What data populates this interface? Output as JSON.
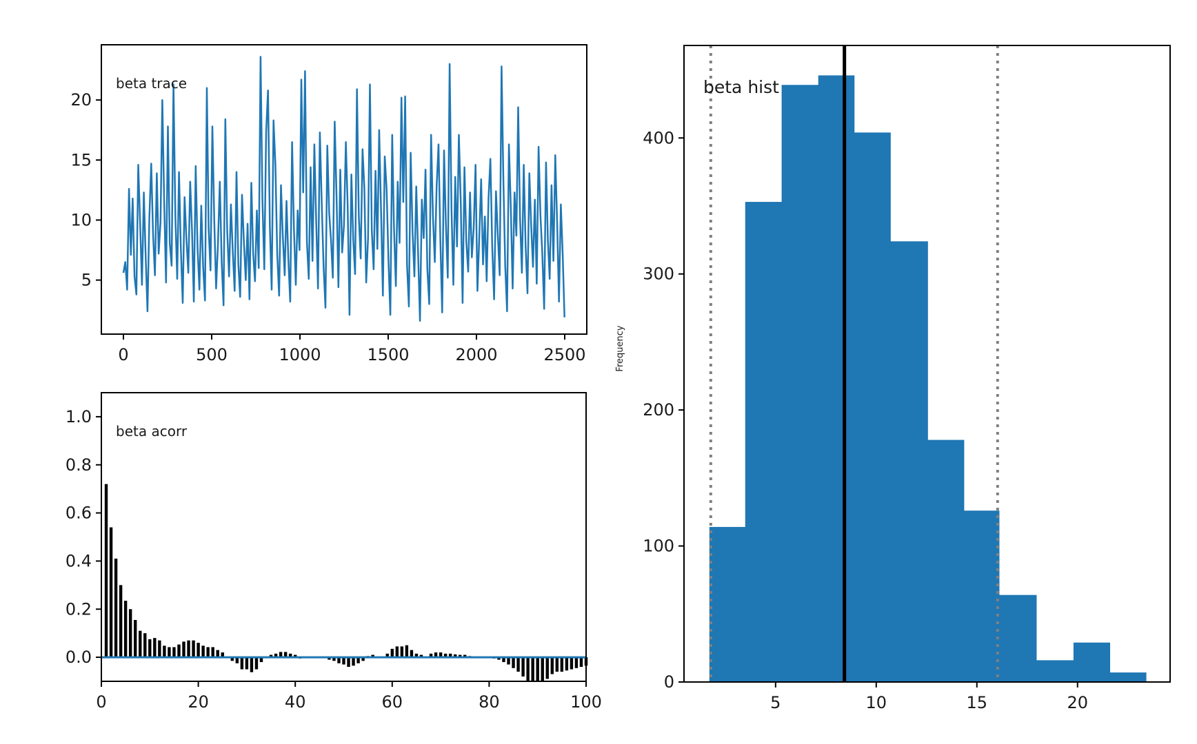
{
  "figure": {
    "background": "#ffffff"
  },
  "chart_data": [
    {
      "id": "trace",
      "type": "line",
      "title": "beta trace",
      "xlabel": "",
      "ylabel": "",
      "xlim": [
        -125,
        2625
      ],
      "ylim": [
        0.5,
        24.6
      ],
      "xticks": [
        0,
        500,
        1000,
        1500,
        2000,
        2500
      ],
      "xtick_labels": [
        "0",
        "500",
        "1000",
        "1500",
        "2000",
        "2500"
      ],
      "yticks": [
        5,
        10,
        15,
        20
      ],
      "ytick_labels": [
        "5",
        "10",
        "15",
        "20"
      ],
      "grid": false,
      "color": "#1f77b4",
      "n_samples": 2500,
      "x_step": 10,
      "values": [
        5.6,
        6.5,
        4.2,
        12.6,
        7.1,
        11.8,
        5.3,
        3.8,
        14.6,
        9.8,
        4.6,
        12.3,
        6.9,
        2.4,
        10.2,
        14.7,
        8.8,
        5.4,
        13.9,
        7.2,
        9.8,
        20.0,
        11.6,
        4.8,
        17.8,
        8.1,
        6.2,
        21.3,
        10.4,
        5.1,
        14.0,
        7.6,
        3.1,
        11.9,
        8.4,
        5.6,
        13.2,
        9.1,
        3.2,
        14.5,
        7.7,
        4.2,
        11.2,
        6.1,
        3.3,
        21.0,
        9.3,
        5.8,
        17.8,
        10.1,
        4.3,
        8.0,
        13.2,
        6.5,
        2.9,
        18.4,
        9.1,
        5.3,
        11.3,
        7.4,
        4.1,
        14.0,
        6.3,
        3.6,
        12.1,
        8.2,
        5.0,
        9.7,
        3.4,
        13.1,
        7.2,
        4.9,
        10.8,
        6.0,
        23.6,
        11.7,
        5.9,
        17.4,
        20.8,
        9.4,
        4.2,
        18.3,
        14.6,
        7.1,
        3.7,
        12.9,
        8.6,
        5.4,
        11.6,
        6.7,
        3.2,
        16.5,
        9.3,
        4.6,
        10.8,
        7.5,
        21.7,
        12.3,
        22.4,
        8.2,
        5.1,
        14.4,
        6.6,
        16.3,
        9.8,
        4.3,
        17.3,
        11.4,
        6.1,
        2.7,
        16.2,
        10.6,
        8.3,
        5.2,
        18.2,
        12.0,
        4.4,
        14.2,
        7.3,
        9.6,
        16.5,
        11.2,
        2.1,
        13.8,
        8.4,
        5.5,
        20.9,
        10.3,
        6.8,
        15.9,
        12.7,
        4.8,
        8.5,
        21.3,
        9.2,
        5.9,
        14.1,
        7.6,
        17.5,
        10.9,
        3.7,
        15.3,
        12.6,
        6.6,
        2.1,
        17.1,
        9.4,
        4.5,
        13.2,
        8.1,
        20.2,
        11.5,
        20.3,
        6.3,
        2.8,
        15.6,
        9.1,
        5.3,
        12.8,
        7.2,
        1.6,
        11.7,
        8.5,
        14.2,
        5.9,
        3.0,
        17.1,
        10.3,
        6.5,
        12.9,
        16.3,
        8.4,
        2.3,
        15.8,
        9.6,
        5.2,
        23.0,
        10.9,
        4.6,
        13.6,
        7.8,
        17.1,
        11.6,
        3.1,
        14.4,
        8.2,
        5.7,
        12.3,
        6.9,
        9.3,
        14.6,
        4.1,
        8.6,
        13.4,
        6.3,
        10.3,
        4.9,
        11.8,
        15.1,
        7.7,
        3.4,
        12.4,
        8.8,
        5.4,
        22.8,
        13.5,
        6.2,
        2.4,
        16.3,
        11.1,
        4.3,
        12.3,
        8.7,
        19.4,
        10.2,
        5.6,
        14.6,
        7.8,
        3.9,
        13.9,
        9.5,
        6.1,
        11.7,
        4.7,
        16.1,
        10.4,
        7.2,
        2.6,
        14.8,
        8.3,
        5.1,
        12.9,
        6.6,
        15.4,
        9.8,
        3.2,
        11.3,
        7.1,
        1.9
      ]
    },
    {
      "id": "acorr",
      "type": "bar",
      "title": "beta acorr",
      "xlabel": "",
      "ylabel": "",
      "xlim": [
        0,
        100
      ],
      "ylim": [
        -0.1,
        1.1
      ],
      "xticks": [
        0,
        20,
        40,
        60,
        80,
        100
      ],
      "xtick_labels": [
        "0",
        "20",
        "40",
        "60",
        "80",
        "100"
      ],
      "yticks": [
        0.0,
        0.2,
        0.4,
        0.6,
        0.8,
        1.0
      ],
      "ytick_labels": [
        "0.0",
        "0.2",
        "0.4",
        "0.6",
        "0.8",
        "1.0"
      ],
      "grid": false,
      "bar_color": "#000000",
      "zero_line_color": "#1f77b4",
      "lags": [
        1,
        2,
        3,
        4,
        5,
        6,
        7,
        8,
        9,
        10,
        11,
        12,
        13,
        14,
        15,
        16,
        17,
        18,
        19,
        20,
        21,
        22,
        23,
        24,
        25,
        26,
        27,
        28,
        29,
        30,
        31,
        32,
        33,
        34,
        35,
        36,
        37,
        38,
        39,
        40,
        41,
        42,
        43,
        44,
        45,
        46,
        47,
        48,
        49,
        50,
        51,
        52,
        53,
        54,
        55,
        56,
        57,
        58,
        59,
        60,
        61,
        62,
        63,
        64,
        65,
        66,
        67,
        68,
        69,
        70,
        71,
        72,
        73,
        74,
        75,
        76,
        77,
        78,
        79,
        80,
        81,
        82,
        83,
        84,
        85,
        86,
        87,
        88,
        89,
        90,
        91,
        92,
        93,
        94,
        95,
        96,
        97,
        98,
        99,
        100
      ],
      "values": [
        0.72,
        0.54,
        0.41,
        0.3,
        0.235,
        0.2,
        0.155,
        0.11,
        0.1,
        0.075,
        0.08,
        0.07,
        0.048,
        0.042,
        0.042,
        0.053,
        0.065,
        0.07,
        0.07,
        0.06,
        0.048,
        0.042,
        0.042,
        0.03,
        0.02,
        0.0,
        -0.015,
        -0.025,
        -0.05,
        -0.05,
        -0.062,
        -0.05,
        -0.02,
        0.0,
        0.01,
        0.015,
        0.022,
        0.022,
        0.015,
        0.01,
        -0.005,
        0.0,
        0.0,
        0.0,
        0.0,
        0.0,
        -0.01,
        -0.015,
        -0.025,
        -0.03,
        -0.04,
        -0.035,
        -0.025,
        -0.015,
        0.005,
        0.01,
        0.0,
        0.0,
        0.015,
        0.035,
        0.045,
        0.045,
        0.05,
        0.03,
        0.015,
        0.01,
        0.0,
        0.015,
        0.02,
        0.02,
        0.015,
        0.015,
        0.012,
        0.01,
        0.01,
        0.005,
        0.0,
        0.0,
        0.0,
        0.0,
        -0.005,
        -0.01,
        -0.02,
        -0.03,
        -0.045,
        -0.06,
        -0.08,
        -0.1,
        -0.1,
        -0.1,
        -0.1,
        -0.09,
        -0.07,
        -0.06,
        -0.06,
        -0.055,
        -0.05,
        -0.045,
        -0.04,
        -0.035
      ]
    },
    {
      "id": "hist",
      "type": "bar",
      "title": "beta hist",
      "xlabel": "",
      "ylabel": "Frequency",
      "xlim": [
        0.45,
        24.6
      ],
      "ylim": [
        0,
        468
      ],
      "xticks": [
        5,
        10,
        15,
        20
      ],
      "xtick_labels": [
        "5",
        "10",
        "15",
        "20"
      ],
      "yticks": [
        0,
        100,
        200,
        300,
        400
      ],
      "ytick_labels": [
        "0",
        "100",
        "200",
        "300",
        "400"
      ],
      "grid": false,
      "bar_color": "#1f77b4",
      "bin_edges": [
        1.71,
        3.49,
        5.3,
        7.12,
        8.9,
        10.7,
        12.55,
        14.35,
        16.1,
        17.95,
        19.8,
        21.6,
        23.4
      ],
      "counts": [
        114,
        353,
        439,
        446,
        404,
        324,
        178,
        126,
        64,
        16,
        29,
        7
      ],
      "vlines": [
        {
          "name": "mean",
          "x": 8.42,
          "style": "solid",
          "color": "#000000"
        },
        {
          "name": "lower-interval",
          "x": 1.78,
          "style": "dotted",
          "color": "#808080"
        },
        {
          "name": "upper-interval",
          "x": 16.03,
          "style": "dotted",
          "color": "#808080"
        }
      ]
    }
  ]
}
